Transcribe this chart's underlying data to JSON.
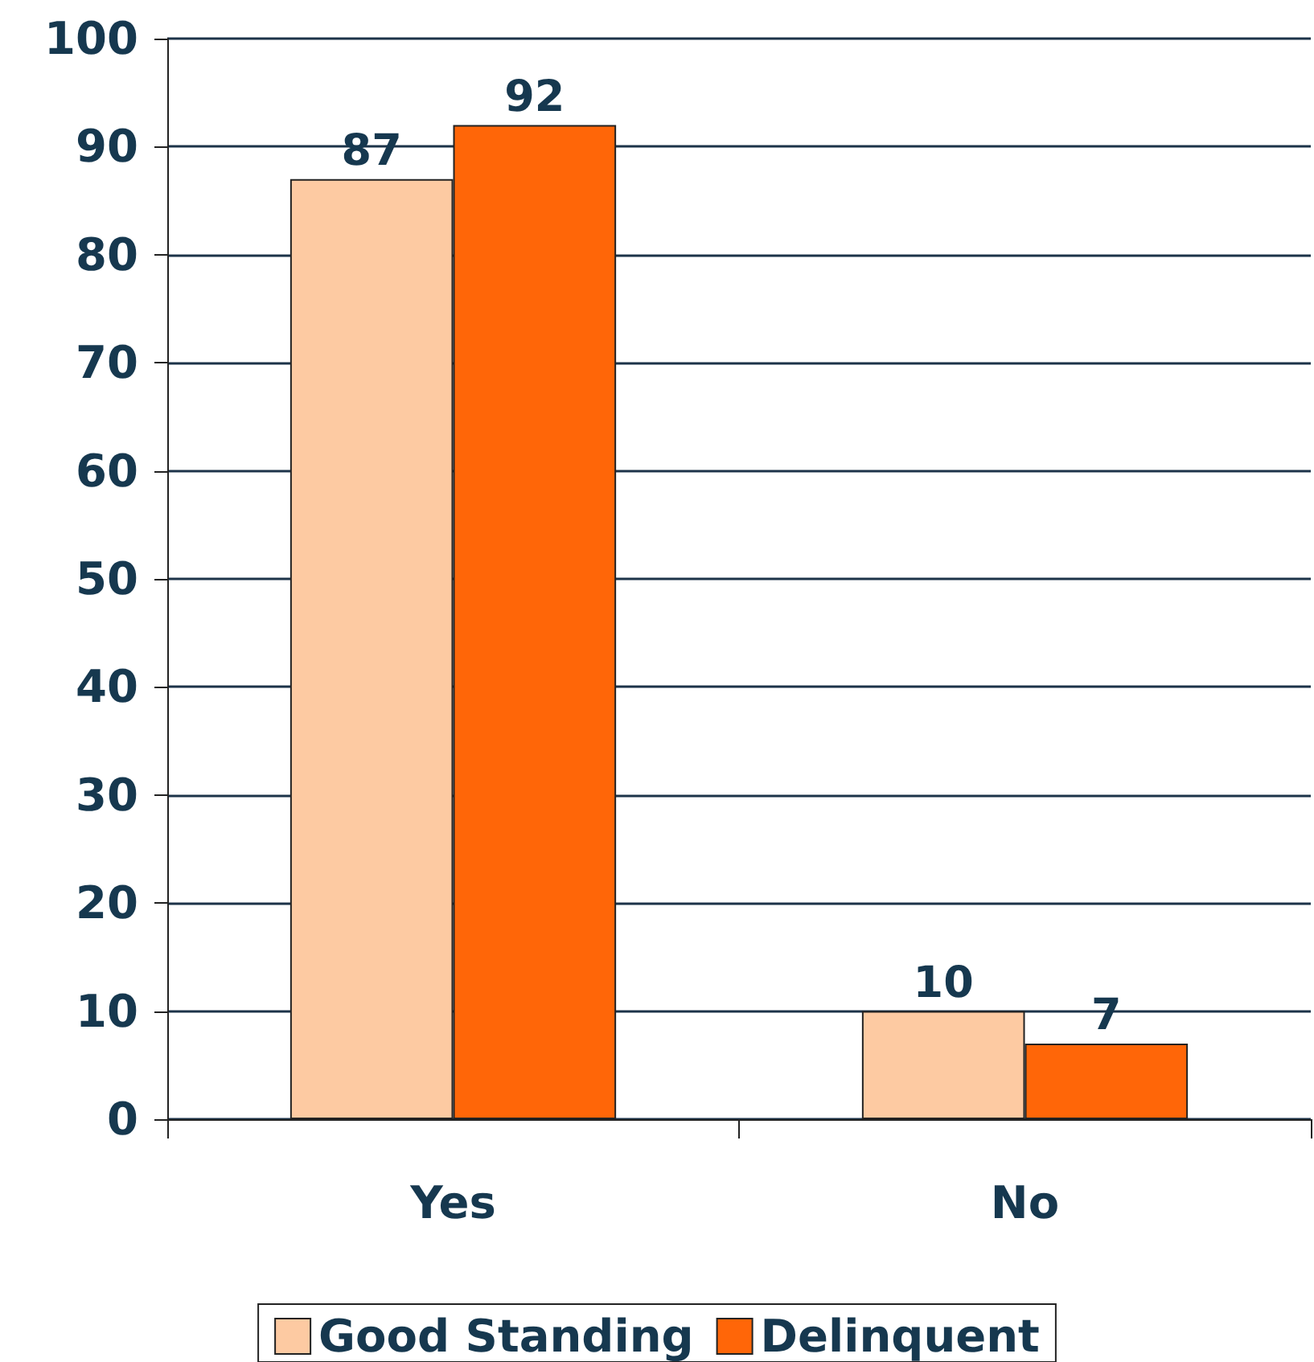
{
  "chart_data": {
    "type": "bar",
    "categories": [
      "Yes",
      "No"
    ],
    "series": [
      {
        "name": "Good Standing",
        "color": "#fdcaa2",
        "values": [
          87,
          10
        ]
      },
      {
        "name": "Delinquent",
        "color": "#ff6608",
        "values": [
          92,
          7
        ]
      }
    ],
    "ylim": [
      0,
      100
    ],
    "yticks": [
      0,
      10,
      20,
      30,
      40,
      50,
      60,
      70,
      80,
      90,
      100
    ],
    "grid": "y",
    "legend": "bottom",
    "data_labels": true
  }
}
